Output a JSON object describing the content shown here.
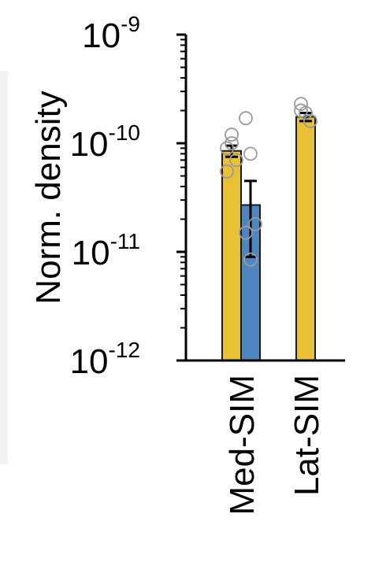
{
  "chart_data": {
    "type": "bar",
    "ylabel": "Norm. density",
    "yscale": "log",
    "ylim": [
      1e-12,
      1e-09
    ],
    "yticks": [
      {
        "base": "10",
        "exp": "-9",
        "value": 1e-09
      },
      {
        "base": "10",
        "exp": "-10",
        "value": 1e-10
      },
      {
        "base": "10",
        "exp": "-11",
        "value": 1e-11
      },
      {
        "base": "10",
        "exp": "-12",
        "value": 1e-12
      }
    ],
    "categories": [
      "Med-SIM",
      "Lat-SIM"
    ],
    "series": [
      {
        "color": "#e8c234",
        "values": [
          8.5e-11,
          1.75e-10
        ],
        "error": [
          1e-11,
          1.5e-11
        ],
        "points": [
          [
            9e-11,
            1.2e-10,
            7e-11,
            5.5e-11,
            1e-10
          ],
          [
            2.3e-10,
            1.9e-10,
            1.6e-10,
            2e-10
          ]
        ]
      },
      {
        "color": "#4f86c0",
        "values": [
          2.7e-11,
          null
        ],
        "error": [
          1.8e-11,
          null
        ],
        "points": [
          [
            1.7e-10,
            8e-11,
            1.8e-11,
            1.5e-11,
            8.5e-12
          ],
          []
        ]
      }
    ],
    "grid": false,
    "legend": "none"
  }
}
